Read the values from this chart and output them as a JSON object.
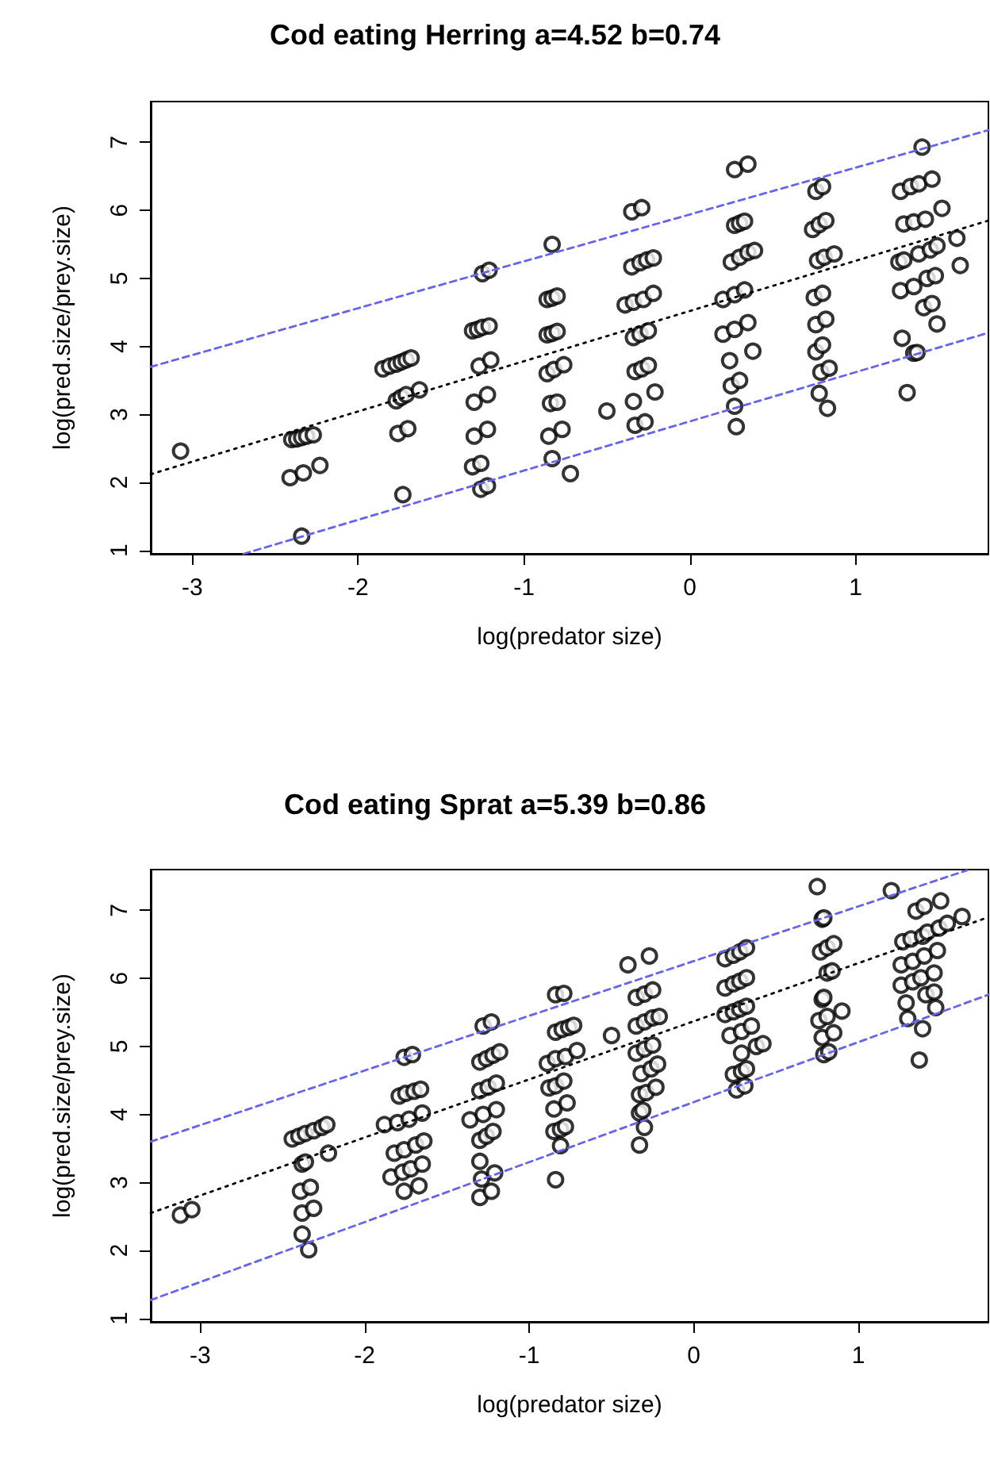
{
  "chart_data": [
    {
      "type": "scatter",
      "title": "Cod eating Herring a=4.52 b=0.74",
      "xlabel": "log(predator size)",
      "ylabel": "log(pred.size/prey.size)",
      "xlim": [
        -3.25,
        1.8
      ],
      "ylim": [
        0.95,
        7.6
      ],
      "xticks": [
        -3,
        -2,
        -1,
        0,
        1
      ],
      "yticks": [
        1,
        2,
        3,
        4,
        5,
        6,
        7
      ],
      "grid": false,
      "series": [
        {
          "type": "scatter",
          "marker": "circle",
          "color": "#000000",
          "x": [
            -3.07,
            -2.4,
            -2.37,
            -2.34,
            -2.31,
            -2.27,
            -2.41,
            -2.33,
            -2.23,
            -2.34,
            -1.85,
            -1.81,
            -1.77,
            -1.74,
            -1.71,
            -1.68,
            -1.77,
            -1.74,
            -1.71,
            -1.63,
            -1.76,
            -1.7,
            -1.73,
            -1.31,
            -1.28,
            -1.25,
            -1.21,
            -1.27,
            -1.2,
            -1.3,
            -1.22,
            -1.3,
            -1.22,
            -1.31,
            -1.26,
            -1.26,
            -1.22,
            -1.25,
            -1.21,
            -0.83,
            -0.86,
            -0.83,
            -0.8,
            -0.86,
            -0.83,
            -0.8,
            -0.86,
            -0.82,
            -0.76,
            -0.84,
            -0.8,
            -0.85,
            -0.77,
            -0.83,
            -0.72,
            -0.5,
            -0.35,
            -0.29,
            -0.35,
            -0.3,
            -0.26,
            -0.22,
            -0.39,
            -0.34,
            -0.28,
            -0.22,
            -0.34,
            -0.3,
            -0.25,
            -0.33,
            -0.29,
            -0.25,
            -0.34,
            -0.21,
            -0.33,
            -0.27,
            0.27,
            0.35,
            0.27,
            0.3,
            0.33,
            0.25,
            0.3,
            0.35,
            0.39,
            0.2,
            0.27,
            0.33,
            0.2,
            0.27,
            0.35,
            0.24,
            0.38,
            0.25,
            0.3,
            0.27,
            0.28,
            0.76,
            0.8,
            0.74,
            0.78,
            0.82,
            0.77,
            0.81,
            0.87,
            0.75,
            0.8,
            0.76,
            0.82,
            0.76,
            0.8,
            0.79,
            0.84,
            0.78,
            0.83,
            1.4,
            1.27,
            1.33,
            1.38,
            1.46,
            1.29,
            1.35,
            1.42,
            1.52,
            1.38,
            1.45,
            1.61,
            1.26,
            1.29,
            1.49,
            1.63,
            1.27,
            1.35,
            1.43,
            1.48,
            1.41,
            1.46,
            1.49,
            1.28,
            1.35,
            1.37,
            1.31
          ],
          "values": [
            2.46,
            2.63,
            2.64,
            2.66,
            2.68,
            2.7,
            2.07,
            2.14,
            2.25,
            1.21,
            3.67,
            3.71,
            3.74,
            3.77,
            3.8,
            3.83,
            3.2,
            3.25,
            3.29,
            3.36,
            2.72,
            2.79,
            1.82,
            4.23,
            4.25,
            4.28,
            4.3,
            3.71,
            3.8,
            3.18,
            3.29,
            2.68,
            2.78,
            2.23,
            2.28,
            1.9,
            1.95,
            5.07,
            5.12,
            5.5,
            4.69,
            4.71,
            4.74,
            4.17,
            4.19,
            4.22,
            3.6,
            3.66,
            3.73,
            3.16,
            3.18,
            2.68,
            2.78,
            2.35,
            2.13,
            3.05,
            5.98,
            6.04,
            5.17,
            5.23,
            5.27,
            5.3,
            4.61,
            4.65,
            4.69,
            4.78,
            4.13,
            4.18,
            4.23,
            3.63,
            3.67,
            3.72,
            3.19,
            3.33,
            2.84,
            2.89,
            6.6,
            6.68,
            5.78,
            5.81,
            5.84,
            5.24,
            5.31,
            5.38,
            5.41,
            4.69,
            4.76,
            4.83,
            4.18,
            4.25,
            4.35,
            3.79,
            3.93,
            3.42,
            3.5,
            3.12,
            2.82,
            6.28,
            6.35,
            5.72,
            5.79,
            5.85,
            5.26,
            5.31,
            5.36,
            4.72,
            4.78,
            4.32,
            4.4,
            3.92,
            4.02,
            3.62,
            3.68,
            3.31,
            3.09,
            6.93,
            6.28,
            6.35,
            6.39,
            6.46,
            5.8,
            5.83,
            5.87,
            6.03,
            5.36,
            5.42,
            5.59,
            5.24,
            5.27,
            5.48,
            5.19,
            4.82,
            4.88,
            5.0,
            5.04,
            4.57,
            4.63,
            4.33,
            4.12,
            3.9,
            3.91,
            3.32
          ]
        },
        {
          "type": "line",
          "marker": "none",
          "line_style": "dotted",
          "color": "#000000",
          "x": [
            -3.25,
            1.8
          ],
          "values": [
            2.12,
            5.85
          ]
        },
        {
          "type": "line",
          "marker": "none",
          "line_style": "dashed",
          "color": "#6464f0",
          "x": [
            -3.25,
            1.8
          ],
          "values": [
            3.7,
            7.18
          ]
        },
        {
          "type": "line",
          "marker": "none",
          "line_style": "dashed",
          "color": "#6464f0",
          "x": [
            -2.69,
            1.8
          ],
          "values": [
            0.95,
            4.2
          ]
        }
      ]
    },
    {
      "type": "scatter",
      "title": "Cod eating Sprat a=5.39 b=0.86",
      "xlabel": "log(predator size)",
      "ylabel": "log(pred.size/prey.size)",
      "xlim": [
        -3.3,
        1.79
      ],
      "ylim": [
        0.95,
        7.6
      ],
      "xticks": [
        -3,
        -2,
        -1,
        0,
        1
      ],
      "yticks": [
        1,
        2,
        3,
        4,
        5,
        6,
        7
      ],
      "grid": false,
      "series": [
        {
          "type": "scatter",
          "marker": "circle",
          "color": "#000000",
          "x": [
            -3.12,
            -3.05,
            -2.44,
            -2.4,
            -2.36,
            -2.31,
            -2.26,
            -2.23,
            -2.22,
            -2.38,
            -2.36,
            -2.39,
            -2.33,
            -2.38,
            -2.31,
            -2.38,
            -2.34,
            -1.76,
            -1.71,
            -1.79,
            -1.75,
            -1.7,
            -1.66,
            -1.88,
            -1.8,
            -1.73,
            -1.65,
            -1.82,
            -1.76,
            -1.69,
            -1.64,
            -1.84,
            -1.77,
            -1.72,
            -1.65,
            -1.76,
            -1.67,
            -1.28,
            -1.23,
            -1.3,
            -1.26,
            -1.22,
            -1.18,
            -1.3,
            -1.25,
            -1.2,
            -1.36,
            -1.28,
            -1.2,
            -1.3,
            -1.26,
            -1.22,
            -1.3,
            -1.29,
            -1.21,
            -1.3,
            -1.23,
            -0.84,
            -0.79,
            -0.84,
            -0.8,
            -0.76,
            -0.73,
            -0.89,
            -0.84,
            -0.78,
            -0.71,
            -0.88,
            -0.84,
            -0.79,
            -0.85,
            -0.77,
            -0.85,
            -0.81,
            -0.78,
            -0.81,
            -0.84,
            -0.5,
            -0.4,
            -0.27,
            -0.35,
            -0.3,
            -0.25,
            -0.35,
            -0.3,
            -0.25,
            -0.21,
            -0.35,
            -0.3,
            -0.25,
            -0.32,
            -0.26,
            -0.22,
            -0.33,
            -0.29,
            -0.23,
            -0.33,
            -0.31,
            -0.3,
            -0.33,
            0.19,
            0.24,
            0.28,
            0.32,
            0.19,
            0.24,
            0.28,
            0.32,
            0.19,
            0.24,
            0.28,
            0.32,
            0.22,
            0.29,
            0.35,
            0.29,
            0.38,
            0.42,
            0.24,
            0.29,
            0.32,
            0.26,
            0.31,
            0.75,
            0.78,
            0.79,
            0.77,
            0.81,
            0.85,
            0.81,
            0.84,
            0.78,
            0.79,
            0.76,
            0.81,
            0.9,
            0.78,
            0.85,
            0.79,
            0.82,
            1.2,
            1.35,
            1.4,
            1.5,
            1.27,
            1.32,
            1.39,
            1.42,
            1.49,
            1.54,
            1.63,
            1.26,
            1.33,
            1.4,
            1.48,
            1.26,
            1.33,
            1.38,
            1.46,
            1.29,
            1.41,
            1.46,
            1.47,
            1.3,
            1.39,
            1.37
          ],
          "values": [
            2.52,
            2.6,
            3.64,
            3.68,
            3.72,
            3.76,
            3.81,
            3.85,
            3.43,
            3.27,
            3.3,
            2.87,
            2.93,
            2.55,
            2.62,
            2.24,
            2.01,
            4.84,
            4.88,
            4.27,
            4.31,
            4.34,
            4.37,
            3.85,
            3.88,
            3.93,
            4.02,
            3.43,
            3.48,
            3.55,
            3.61,
            3.08,
            3.15,
            3.2,
            3.27,
            2.87,
            2.95,
            5.3,
            5.36,
            4.77,
            4.82,
            4.87,
            4.92,
            4.35,
            4.4,
            4.46,
            3.92,
            4.0,
            4.07,
            3.62,
            3.68,
            3.75,
            3.31,
            3.05,
            3.14,
            2.78,
            2.87,
            5.76,
            5.78,
            5.21,
            5.25,
            5.28,
            5.31,
            4.75,
            4.82,
            4.85,
            4.94,
            4.39,
            4.42,
            4.49,
            4.08,
            4.17,
            3.75,
            3.78,
            3.82,
            3.54,
            3.04,
            5.16,
            6.2,
            6.33,
            5.72,
            5.77,
            5.83,
            5.3,
            5.36,
            5.42,
            5.44,
            4.9,
            4.96,
            5.02,
            4.6,
            4.67,
            4.74,
            4.29,
            4.32,
            4.4,
            4.02,
            4.06,
            3.81,
            3.55,
            6.29,
            6.34,
            6.39,
            6.45,
            5.86,
            5.92,
            5.96,
            6.01,
            5.47,
            5.51,
            5.55,
            5.59,
            5.16,
            5.22,
            5.3,
            4.9,
            5.0,
            5.04,
            4.59,
            4.63,
            4.67,
            4.36,
            4.42,
            7.35,
            6.87,
            6.89,
            6.39,
            6.45,
            6.51,
            6.08,
            6.11,
            5.69,
            5.72,
            5.38,
            5.44,
            5.52,
            5.13,
            5.2,
            4.88,
            4.92,
            7.29,
            6.99,
            7.06,
            7.14,
            6.54,
            6.58,
            6.62,
            6.68,
            6.74,
            6.81,
            6.91,
            6.2,
            6.25,
            6.33,
            6.41,
            5.9,
            5.95,
            6.01,
            6.08,
            5.64,
            5.76,
            5.8,
            5.57,
            5.41,
            5.26,
            4.8
          ]
        },
        {
          "type": "line",
          "marker": "none",
          "line_style": "dotted",
          "color": "#000000",
          "x": [
            -3.3,
            1.79
          ],
          "values": [
            2.55,
            6.9
          ]
        },
        {
          "type": "line",
          "marker": "none",
          "line_style": "dashed",
          "color": "#6464f0",
          "x": [
            -3.3,
            1.66
          ],
          "values": [
            3.6,
            7.59
          ]
        },
        {
          "type": "line",
          "marker": "none",
          "line_style": "dashed",
          "color": "#6464f0",
          "x": [
            -3.3,
            1.79
          ],
          "values": [
            1.27,
            5.76
          ]
        }
      ]
    }
  ]
}
